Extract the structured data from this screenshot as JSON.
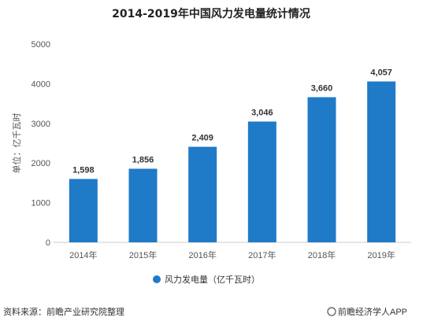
{
  "chart_data": {
    "type": "bar",
    "title": "2014-2019年中国风力发电量统计情况",
    "ylabel": "单位：亿千瓦时",
    "categories": [
      "2014年",
      "2015年",
      "2016年",
      "2017年",
      "2018年",
      "2019年"
    ],
    "series": [
      {
        "name": "风力发电量（亿千瓦时）",
        "values": [
          1598,
          1856,
          2409,
          3046,
          3660,
          4057
        ],
        "labels": [
          "1,598",
          "1,856",
          "2,409",
          "3,046",
          "3,660",
          "4,057"
        ],
        "color": "#1f7ac8"
      }
    ],
    "ylim": [
      0,
      5000
    ],
    "yticks": [
      "0",
      "1000",
      "2000",
      "3000",
      "4000",
      "5000"
    ],
    "grid": false,
    "legend_position": "bottom"
  },
  "footer": {
    "source": "资料来源：前瞻产业研究院整理",
    "brand": "前瞻经济学人APP"
  }
}
